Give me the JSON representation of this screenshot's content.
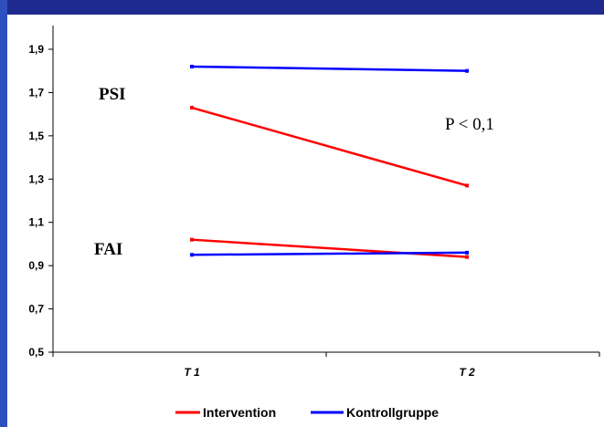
{
  "chart_data": {
    "type": "line",
    "categories": [
      "T 1",
      "T 2"
    ],
    "series": [
      {
        "name": "Intervention",
        "group": "PSI",
        "color": "#ff0000",
        "values": [
          1.63,
          1.27
        ]
      },
      {
        "name": "Kontrollgruppe",
        "group": "PSI",
        "color": "#0000ff",
        "values": [
          1.82,
          1.8
        ]
      },
      {
        "name": "Intervention",
        "group": "FAI",
        "color": "#ff0000",
        "values": [
          1.02,
          0.94
        ]
      },
      {
        "name": "Kontrollgruppe",
        "group": "FAI",
        "color": "#0000ff",
        "values": [
          0.95,
          0.96
        ]
      }
    ],
    "ylim": [
      0.5,
      2.0
    ],
    "yticks": [
      "0,5",
      "0,7",
      "0,9",
      "1,1",
      "1,3",
      "1,5",
      "1,7",
      "1,9"
    ],
    "ytick_values": [
      0.5,
      0.7,
      0.9,
      1.1,
      1.3,
      1.5,
      1.7,
      1.9
    ],
    "grid": false,
    "legend": {
      "placement": "bottom",
      "entries": [
        {
          "label": "Intervention",
          "color": "#ff0000"
        },
        {
          "label": "Kontrollgruppe",
          "color": "#0000ff"
        }
      ]
    },
    "annotations": {
      "psi": "PSI",
      "fai": "FAI",
      "pvalue": "P < 0,1"
    }
  }
}
